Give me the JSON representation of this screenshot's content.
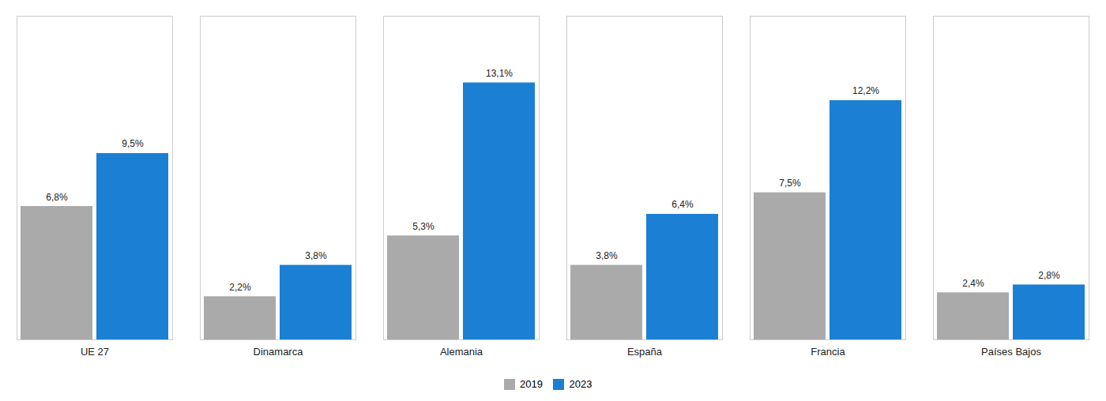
{
  "chart_data": {
    "type": "bar",
    "categories": [
      "UE 27",
      "Dinamarca",
      "Alemania",
      "España",
      "Francia",
      "Países Bajos"
    ],
    "series": [
      {
        "name": "2019",
        "color": "#aaaaaa",
        "values": [
          6.8,
          2.2,
          5.3,
          3.8,
          7.5,
          2.4
        ],
        "value_labels": [
          "6,8%",
          "2,2%",
          "5,3%",
          "3,8%",
          "7,5%",
          "2,4%"
        ]
      },
      {
        "name": "2023",
        "color": "#1b7fd4",
        "values": [
          9.5,
          3.8,
          13.1,
          6.4,
          12.2,
          2.8
        ],
        "value_labels": [
          "9,5%",
          "3,8%",
          "13,1%",
          "6,4%",
          "12,2%",
          "2,8%"
        ]
      }
    ],
    "ylim": [
      0,
      16.5
    ],
    "grid": false,
    "legend": "bottom",
    "data_labels": true,
    "tick_labels": "x"
  }
}
